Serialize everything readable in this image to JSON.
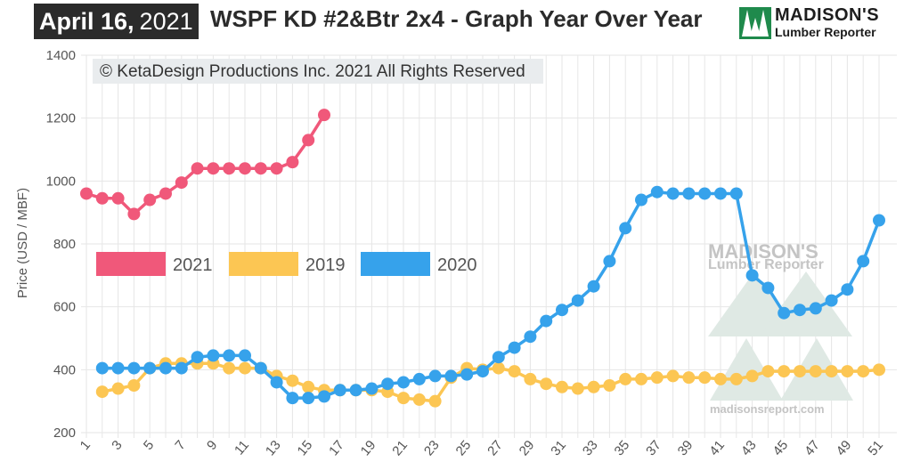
{
  "header": {
    "date_month_day": "April 16,",
    "date_year": "2021",
    "title": "WSPF KD #2&Btr 2x4 - Graph Year Over Year"
  },
  "logo": {
    "line1": "MADISON'S",
    "line2": "Lumber Reporter",
    "color": "#1f8a4c"
  },
  "copyright": "© KetaDesign Productions Inc. 2021 All Rights Reserved",
  "watermark": {
    "line1": "MADISON'S",
    "line2": "Lumber Reporter",
    "url": "madisonsreport.com"
  },
  "chart_data": {
    "type": "line",
    "title": "WSPF KD #2&Btr 2x4 - Graph Year Over Year",
    "xlabel": "",
    "ylabel": "Price (USD / MBF)",
    "ylim": [
      200,
      1400
    ],
    "yticks": [
      200,
      400,
      600,
      800,
      1000,
      1200,
      1400
    ],
    "xlim": [
      1,
      51
    ],
    "xticks": [
      1,
      3,
      5,
      7,
      9,
      11,
      13,
      15,
      17,
      19,
      21,
      23,
      25,
      27,
      29,
      31,
      33,
      35,
      37,
      39,
      41,
      43,
      45,
      47,
      49,
      51
    ],
    "grid": true,
    "legend_position": "middle-left",
    "series": [
      {
        "name": "2021",
        "color": "#f0587a",
        "x": [
          1,
          2,
          3,
          4,
          5,
          6,
          7,
          8,
          9,
          10,
          11,
          12,
          13,
          14,
          15,
          16
        ],
        "y": [
          960,
          945,
          945,
          895,
          940,
          960,
          995,
          1040,
          1040,
          1040,
          1040,
          1040,
          1040,
          1060,
          1130,
          1210
        ]
      },
      {
        "name": "2019",
        "color": "#fcc653",
        "x": [
          2,
          3,
          4,
          5,
          6,
          7,
          8,
          9,
          10,
          11,
          12,
          13,
          14,
          15,
          16,
          17,
          18,
          19,
          20,
          21,
          22,
          23,
          24,
          25,
          26,
          27,
          28,
          29,
          30,
          31,
          32,
          33,
          34,
          35,
          36,
          37,
          38,
          39,
          40,
          41,
          42,
          43,
          44,
          45,
          46,
          47,
          48,
          49,
          50,
          51
        ],
        "y": [
          330,
          340,
          350,
          405,
          420,
          420,
          420,
          420,
          405,
          405,
          405,
          380,
          365,
          345,
          335,
          335,
          335,
          335,
          330,
          310,
          305,
          300,
          375,
          405,
          400,
          405,
          395,
          370,
          355,
          345,
          340,
          345,
          350,
          370,
          370,
          375,
          380,
          375,
          375,
          370,
          370,
          380,
          395,
          395,
          395,
          395,
          395,
          395,
          395,
          400
        ]
      },
      {
        "name": "2020",
        "color": "#36a2eb",
        "x": [
          2,
          3,
          4,
          5,
          6,
          7,
          8,
          9,
          10,
          11,
          12,
          13,
          14,
          15,
          16,
          17,
          18,
          19,
          20,
          21,
          22,
          23,
          24,
          25,
          26,
          27,
          28,
          29,
          30,
          31,
          32,
          33,
          34,
          35,
          36,
          37,
          38,
          39,
          40,
          41,
          42,
          43,
          44,
          45,
          46,
          47,
          48,
          49,
          50,
          51
        ],
        "y": [
          405,
          405,
          405,
          405,
          405,
          405,
          440,
          445,
          445,
          445,
          405,
          360,
          310,
          310,
          315,
          335,
          335,
          340,
          355,
          360,
          370,
          380,
          380,
          385,
          395,
          440,
          470,
          505,
          555,
          590,
          620,
          665,
          745,
          850,
          940,
          965,
          960,
          960,
          960,
          960,
          960,
          700,
          660,
          580,
          590,
          595,
          620,
          655,
          745,
          875
        ]
      }
    ],
    "legend_order": [
      "2021",
      "2019",
      "2020"
    ]
  }
}
